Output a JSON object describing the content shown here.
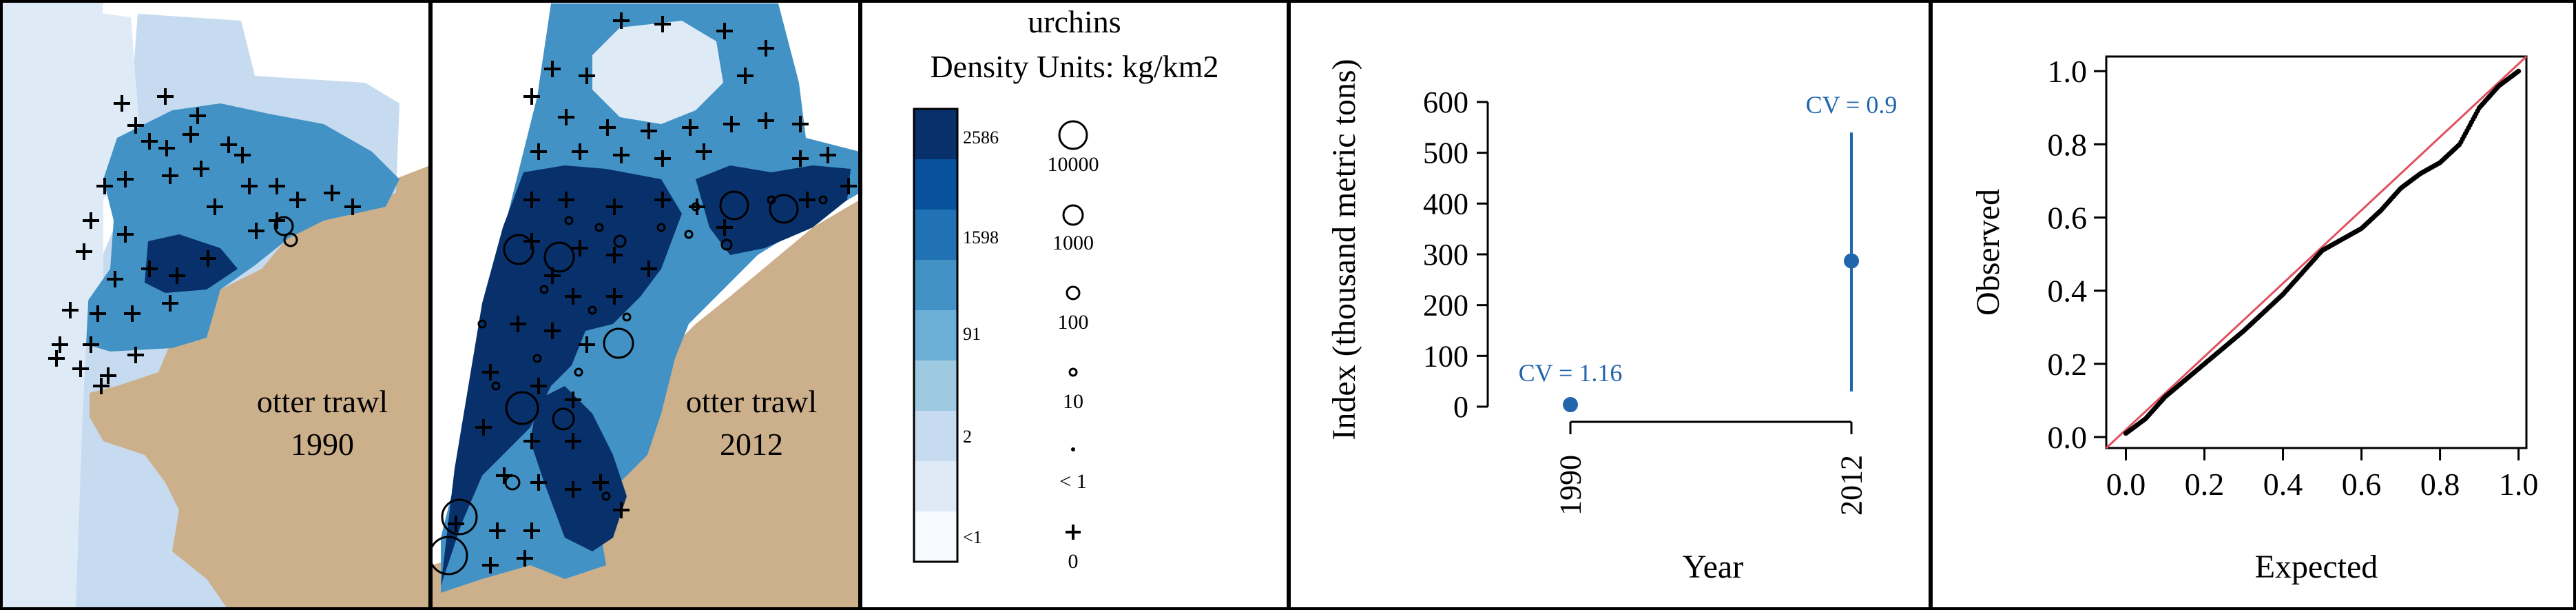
{
  "colors": {
    "land": "#ccb08b",
    "density_ramp": [
      "#f7fbff",
      "#deebf7",
      "#c6dbef",
      "#9ecae1",
      "#6baed6",
      "#4292c6",
      "#2171b5",
      "#08519c",
      "#08306b"
    ],
    "index_point": "#2166ac",
    "qq_line": "#e0505e",
    "frame": "#000000"
  },
  "maps": [
    {
      "gear_label": "otter trawl",
      "year_label": "1990"
    },
    {
      "gear_label": "otter trawl",
      "year_label": "2012"
    }
  ],
  "legend": {
    "species": "urchins",
    "units": "Density Units: kg/km2",
    "color_ticks": [
      "2586",
      "1598",
      "91",
      "2",
      "<1"
    ],
    "size_keys": [
      "10000",
      "1000",
      "100",
      "10",
      "< 1",
      "0"
    ]
  },
  "chart_data": [
    {
      "type": "scatter",
      "title": "",
      "xlabel": "Year",
      "ylabel": "Index (thousand metric tons)",
      "ylim": [
        0,
        600
      ],
      "yticks": [
        "0",
        "100",
        "200",
        "300",
        "400",
        "500",
        "600"
      ],
      "categories": [
        "1990",
        "2012"
      ],
      "values": [
        4,
        287
      ],
      "error_bars": [
        [
          0,
          12
        ],
        [
          30,
          540
        ]
      ],
      "annotations": [
        "CV = 1.16",
        "CV = 0.9"
      ]
    },
    {
      "type": "scatter",
      "title": "",
      "xlabel": "Expected",
      "ylabel": "Observed",
      "xlim": [
        -0.05,
        1.02
      ],
      "ylim": [
        -0.03,
        1.04
      ],
      "xticks": [
        "0.0",
        "0.2",
        "0.4",
        "0.6",
        "0.8",
        "1.0"
      ],
      "yticks": [
        "0.0",
        "0.2",
        "0.4",
        "0.6",
        "0.8",
        "1.0"
      ],
      "reference_line": [
        [
          -0.05,
          -0.03
        ],
        [
          1.02,
          1.04
        ]
      ],
      "qq_anchors": [
        [
          0.0,
          0.01
        ],
        [
          0.05,
          0.05
        ],
        [
          0.1,
          0.11
        ],
        [
          0.2,
          0.2
        ],
        [
          0.3,
          0.29
        ],
        [
          0.4,
          0.39
        ],
        [
          0.45,
          0.45
        ],
        [
          0.5,
          0.51
        ],
        [
          0.55,
          0.54
        ],
        [
          0.6,
          0.57
        ],
        [
          0.65,
          0.62
        ],
        [
          0.7,
          0.68
        ],
        [
          0.75,
          0.72
        ],
        [
          0.8,
          0.75
        ],
        [
          0.85,
          0.8
        ],
        [
          0.9,
          0.9
        ],
        [
          0.95,
          0.96
        ],
        [
          1.0,
          1.0
        ]
      ]
    }
  ]
}
